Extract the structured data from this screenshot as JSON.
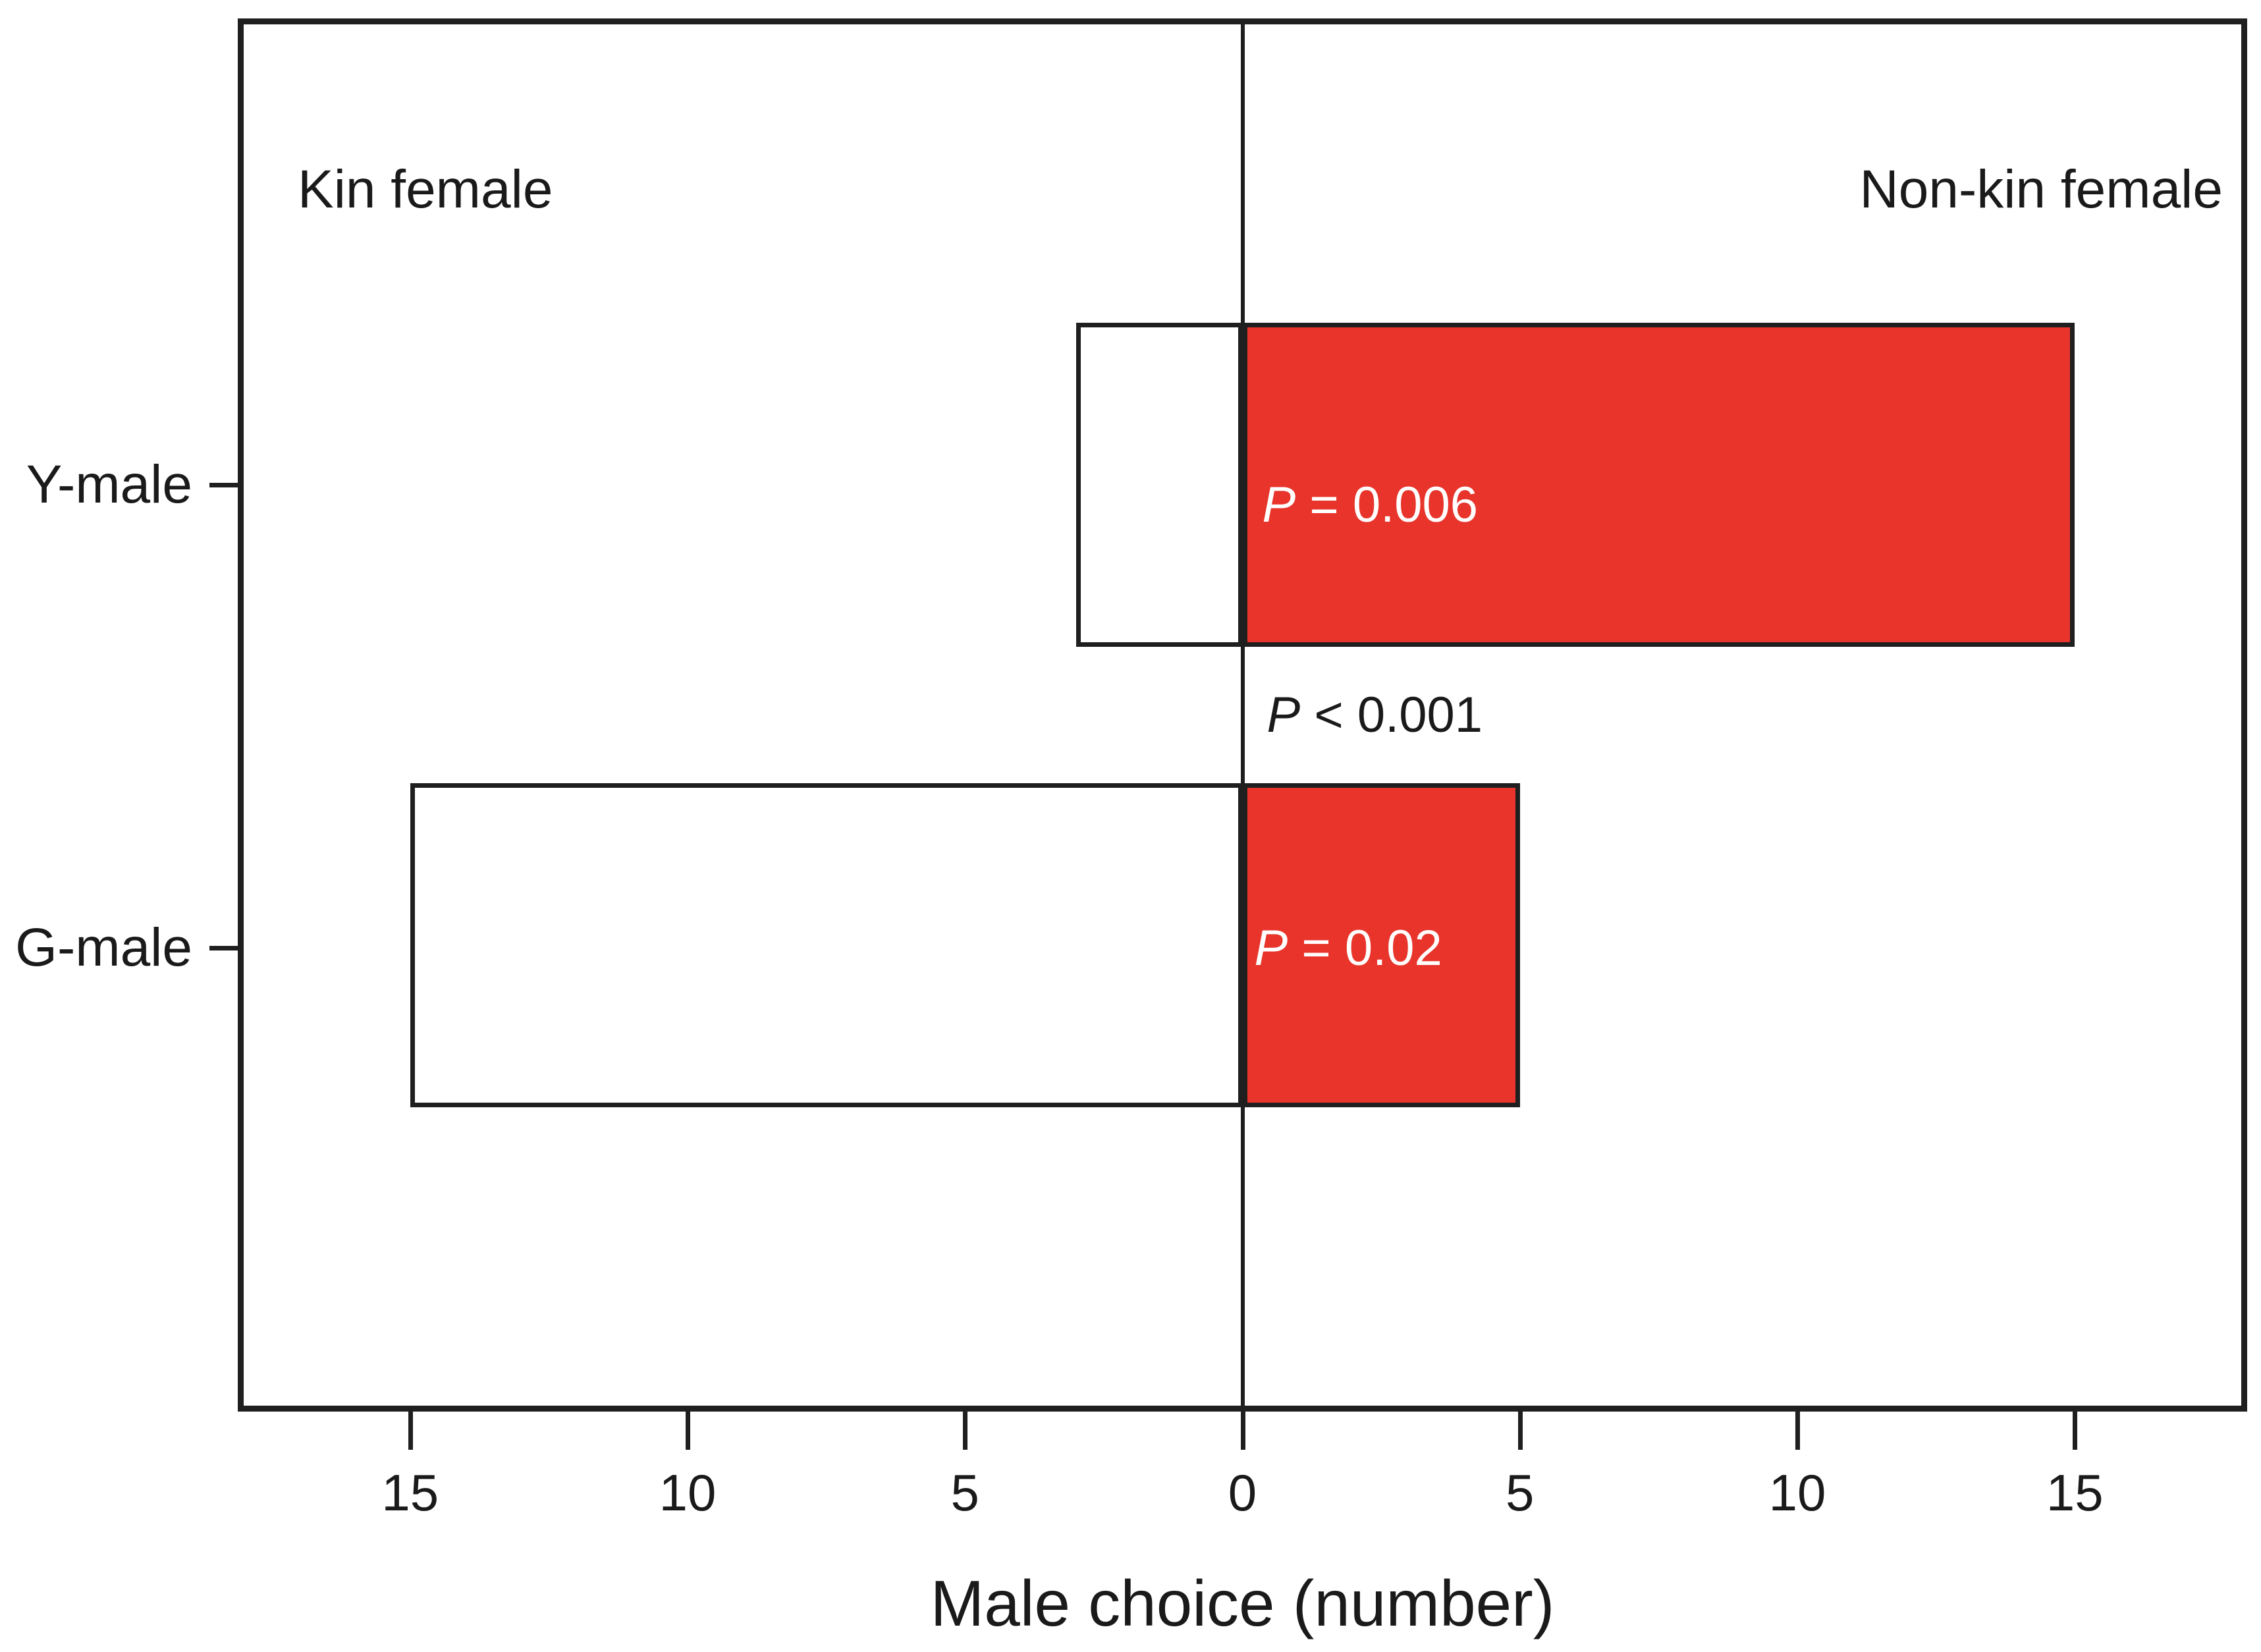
{
  "chart_data": {
    "type": "bar",
    "variant": "diverging-horizontal",
    "title": "",
    "xlabel": "Male choice (number)",
    "left_header": "Kin female",
    "right_header": "Non-kin female",
    "categories": [
      "Y-male",
      "G-male"
    ],
    "series": [
      {
        "name": "Kin female",
        "side": "left",
        "fill": "#ffffff",
        "values": [
          3,
          15
        ]
      },
      {
        "name": "Non-kin female",
        "side": "right",
        "fill": "#e8342b",
        "values": [
          15,
          5
        ]
      }
    ],
    "annotations": [
      {
        "target": "y-male-nonkin-bar",
        "text": "P = 0.006",
        "color": "#ffffff"
      },
      {
        "target": "between-bars-at-zero",
        "text": "P < 0.001",
        "color": "#1a1a1a"
      },
      {
        "target": "g-male-nonkin-bar",
        "text": "P = 0.02",
        "color": "#ffffff"
      }
    ],
    "x_ticks": [
      {
        "label": "15",
        "value": -15
      },
      {
        "label": "10",
        "value": -10
      },
      {
        "label": "5",
        "value": -5
      },
      {
        "label": "0",
        "value": 0
      },
      {
        "label": "5",
        "value": 5
      },
      {
        "label": "10",
        "value": 10
      },
      {
        "label": "15",
        "value": 15
      }
    ],
    "xlim": [
      -18,
      18
    ],
    "grid": false,
    "legend": "none",
    "axis_color": "#1f1f1f",
    "background": "#ffffff"
  }
}
